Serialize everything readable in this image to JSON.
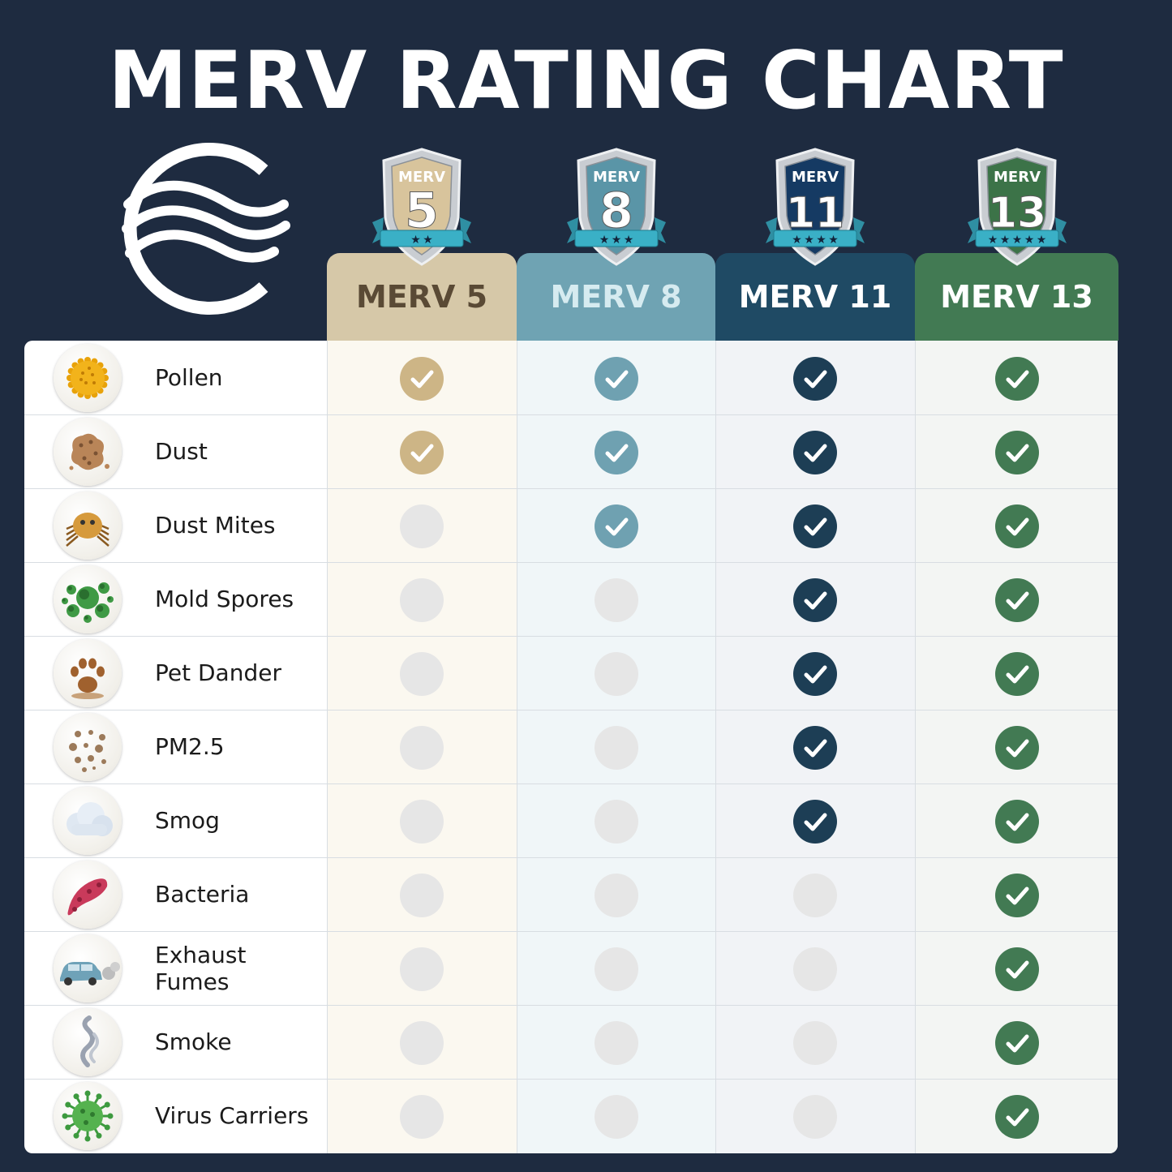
{
  "title": "MERV RATING CHART",
  "columns": [
    {
      "label": "MERV 5",
      "badge_top": "MERV",
      "badge_num": "5",
      "stars": 2,
      "header_bg": "#d6c8a8",
      "header_fg": "#5a4a35",
      "tint": "#fbf8f0",
      "check": "#cdb586",
      "badge_color": "#d8c49c"
    },
    {
      "label": "MERV 8",
      "badge_top": "MERV",
      "badge_num": "8",
      "stars": 3,
      "header_bg": "#6fa3b3",
      "header_fg": "#d6ebf0",
      "tint": "#f0f6f8",
      "check": "#6fa1b1",
      "badge_color": "#5a95a7"
    },
    {
      "label": "MERV 11",
      "badge_top": "MERV",
      "badge_num": "11",
      "stars": 4,
      "header_bg": "#1f4a64",
      "header_fg": "#ffffff",
      "tint": "#f1f3f6",
      "check": "#1d3e55",
      "badge_color": "#153a63"
    },
    {
      "label": "MERV 13",
      "badge_top": "MERV",
      "badge_num": "13",
      "stars": 5,
      "header_bg": "#427a53",
      "header_fg": "#ffffff",
      "tint": "#f3f5f3",
      "check": "#427a53",
      "badge_color": "#3c7348"
    }
  ],
  "rows": [
    {
      "label": "Pollen",
      "icon": "pollen-icon",
      "ratings": [
        true,
        true,
        true,
        true
      ]
    },
    {
      "label": "Dust",
      "icon": "dust-icon",
      "ratings": [
        true,
        true,
        true,
        true
      ]
    },
    {
      "label": "Dust Mites",
      "icon": "dust-mite-icon",
      "ratings": [
        false,
        true,
        true,
        true
      ]
    },
    {
      "label": "Mold Spores",
      "icon": "mold-spores-icon",
      "ratings": [
        false,
        false,
        true,
        true
      ]
    },
    {
      "label": "Pet Dander",
      "icon": "paw-icon",
      "ratings": [
        false,
        false,
        true,
        true
      ]
    },
    {
      "label": "PM2.5",
      "icon": "particles-icon",
      "ratings": [
        false,
        false,
        true,
        true
      ]
    },
    {
      "label": "Smog",
      "icon": "cloud-icon",
      "ratings": [
        false,
        false,
        true,
        true
      ]
    },
    {
      "label": "Bacteria",
      "icon": "bacteria-icon",
      "ratings": [
        false,
        false,
        false,
        true
      ]
    },
    {
      "label": "Exhaust Fumes",
      "icon": "car-exhaust-icon",
      "ratings": [
        false,
        false,
        false,
        true
      ]
    },
    {
      "label": "Smoke",
      "icon": "smoke-icon",
      "ratings": [
        false,
        false,
        false,
        true
      ]
    },
    {
      "label": "Virus Carriers",
      "icon": "virus-icon",
      "ratings": [
        false,
        false,
        false,
        true
      ]
    }
  ],
  "chart_data": {
    "type": "table",
    "title": "MERV RATING CHART",
    "categories": [
      "Pollen",
      "Dust",
      "Dust Mites",
      "Mold Spores",
      "Pet Dander",
      "PM2.5",
      "Smog",
      "Bacteria",
      "Exhaust Fumes",
      "Smoke",
      "Virus Carriers"
    ],
    "series": [
      {
        "name": "MERV 5",
        "values": [
          1,
          1,
          0,
          0,
          0,
          0,
          0,
          0,
          0,
          0,
          0
        ]
      },
      {
        "name": "MERV 8",
        "values": [
          1,
          1,
          1,
          0,
          0,
          0,
          0,
          0,
          0,
          0,
          0
        ]
      },
      {
        "name": "MERV 11",
        "values": [
          1,
          1,
          1,
          1,
          1,
          1,
          1,
          0,
          0,
          0,
          0
        ]
      },
      {
        "name": "MERV 13",
        "values": [
          1,
          1,
          1,
          1,
          1,
          1,
          1,
          1,
          1,
          1,
          1
        ]
      }
    ]
  }
}
